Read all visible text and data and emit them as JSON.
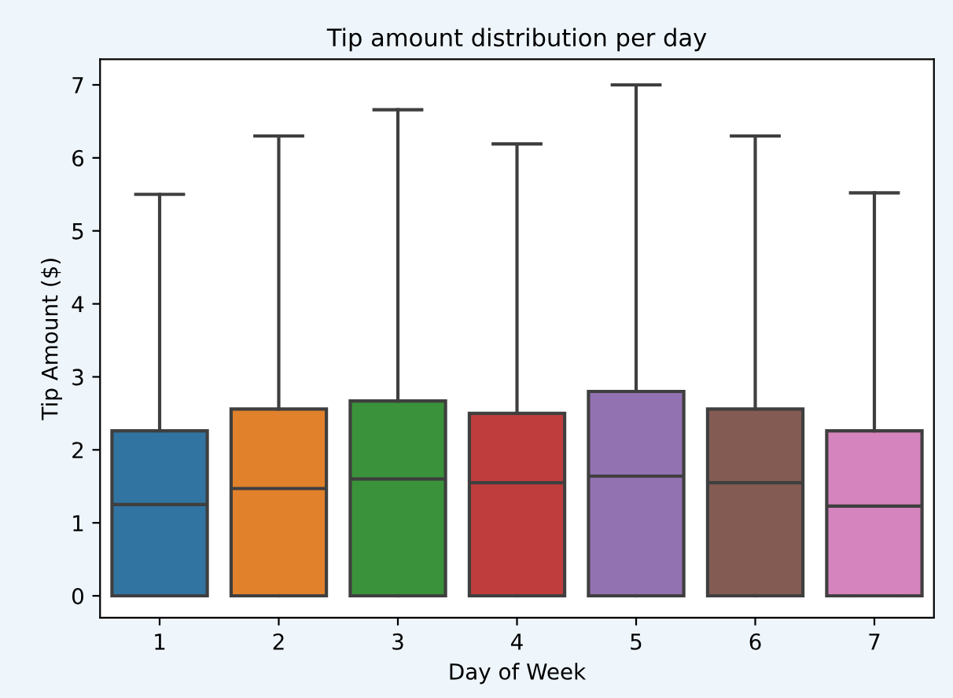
{
  "chart_data": {
    "type": "box",
    "title": "Tip amount distribution per day",
    "xlabel": "Day of Week",
    "ylabel": "Tip Amount ($)",
    "categories": [
      "1",
      "2",
      "3",
      "4",
      "5",
      "6",
      "7"
    ],
    "colors": [
      "#3274a1",
      "#e1812c",
      "#3a923a",
      "#c03d3e",
      "#9372b2",
      "#845b53",
      "#d684bd"
    ],
    "boxes": [
      {
        "low": 0,
        "q1": 0,
        "median": 1.25,
        "q3": 2.26,
        "high": 5.5
      },
      {
        "low": 0,
        "q1": 0,
        "median": 1.47,
        "q3": 2.56,
        "high": 6.3
      },
      {
        "low": 0,
        "q1": 0,
        "median": 1.6,
        "q3": 2.67,
        "high": 6.66
      },
      {
        "low": 0,
        "q1": 0,
        "median": 1.55,
        "q3": 2.5,
        "high": 6.19
      },
      {
        "low": 0,
        "q1": 0,
        "median": 1.64,
        "q3": 2.8,
        "high": 7.0
      },
      {
        "low": 0,
        "q1": 0,
        "median": 1.55,
        "q3": 2.56,
        "high": 6.3
      },
      {
        "low": 0,
        "q1": 0,
        "median": 1.23,
        "q3": 2.26,
        "high": 5.52
      }
    ],
    "ylim": [
      -0.3,
      7.35
    ],
    "yticks": [
      0,
      1,
      2,
      3,
      4,
      5,
      6,
      7
    ],
    "grid": false
  }
}
